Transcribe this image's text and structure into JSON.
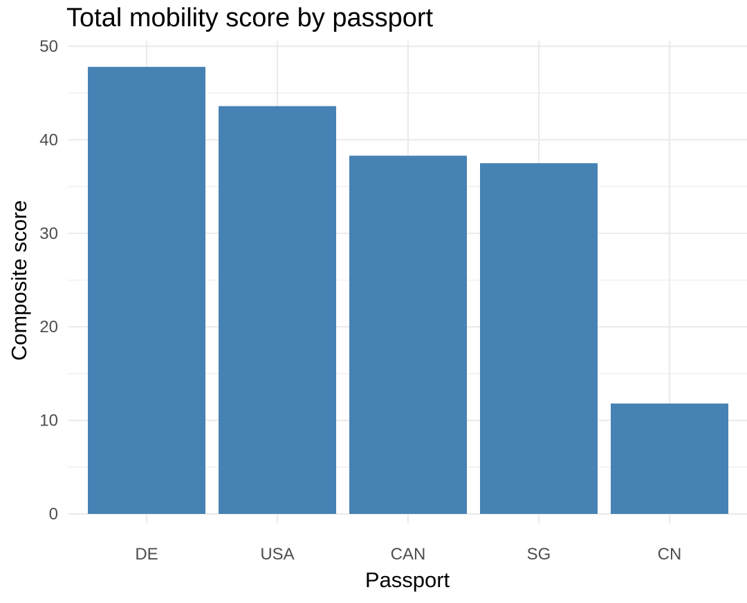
{
  "chart_data": {
    "type": "bar",
    "title": "Total mobility score by passport",
    "xlabel": "Passport",
    "ylabel": "Composite score",
    "categories": [
      "DE",
      "USA",
      "CAN",
      "SG",
      "CN"
    ],
    "values": [
      47.8,
      43.6,
      38.3,
      37.5,
      11.8
    ],
    "ylim": [
      0,
      50
    ],
    "yticks": [
      0,
      10,
      20,
      30,
      40,
      50
    ],
    "grid": true,
    "legend": "none",
    "bar_color": "#4682B4"
  }
}
